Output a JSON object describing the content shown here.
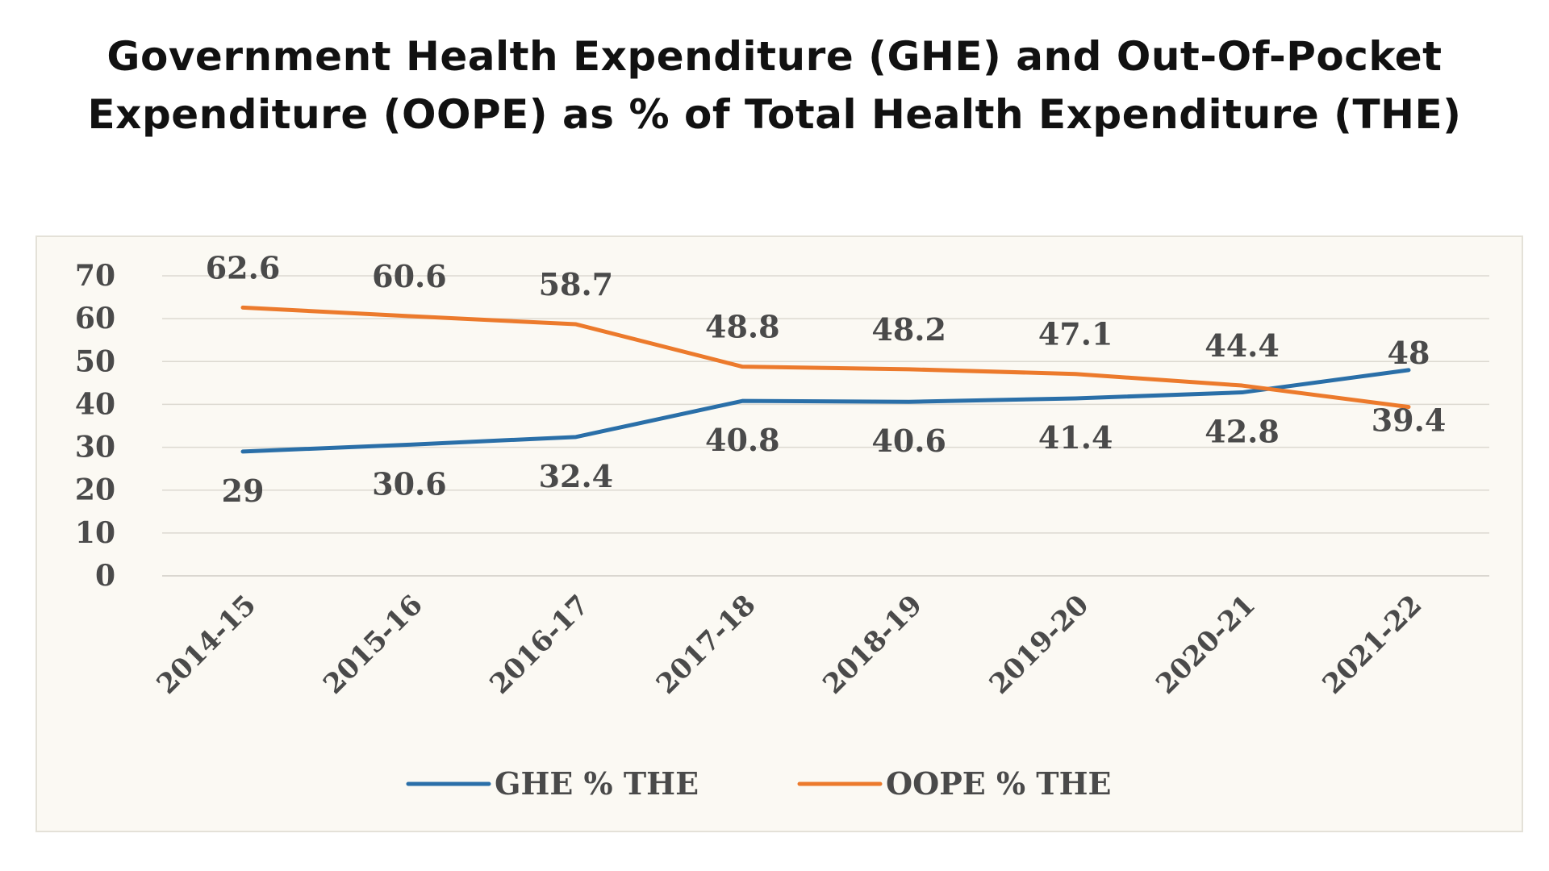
{
  "title_line1": "Government Health Expenditure (GHE) and Out-Of-Pocket",
  "title_line2": "Expenditure (OOPE) as % of Total Health Expenditure (THE)",
  "chart_data": {
    "type": "line",
    "title": "Government Health Expenditure (GHE) and Out-Of-Pocket Expenditure (OOPE) as % of Total Health Expenditure (THE)",
    "xlabel": "",
    "ylabel": "",
    "categories": [
      "2014-15",
      "2015-16",
      "2016-17",
      "2017-18",
      "2018-19",
      "2019-20",
      "2020-21",
      "2021-22"
    ],
    "ylim": [
      0,
      70
    ],
    "yticks": [
      0,
      10,
      20,
      30,
      40,
      50,
      60,
      70
    ],
    "grid": true,
    "legend_position": "bottom",
    "series": [
      {
        "name": "GHE % THE",
        "color": "#2a6fa8",
        "values": [
          29,
          30.6,
          32.4,
          40.8,
          40.6,
          41.4,
          42.8,
          48
        ],
        "labels": [
          "29",
          "30.6",
          "32.4",
          "40.8",
          "40.6",
          "41.4",
          "42.8",
          "48"
        ]
      },
      {
        "name": "OOPE % THE",
        "color": "#ec7a2c",
        "values": [
          62.6,
          60.6,
          58.7,
          48.8,
          48.2,
          47.1,
          44.4,
          39.4
        ],
        "labels": [
          "62.6",
          "60.6",
          "58.7",
          "48.8",
          "48.2",
          "47.1",
          "44.4",
          "39.4"
        ]
      }
    ]
  }
}
